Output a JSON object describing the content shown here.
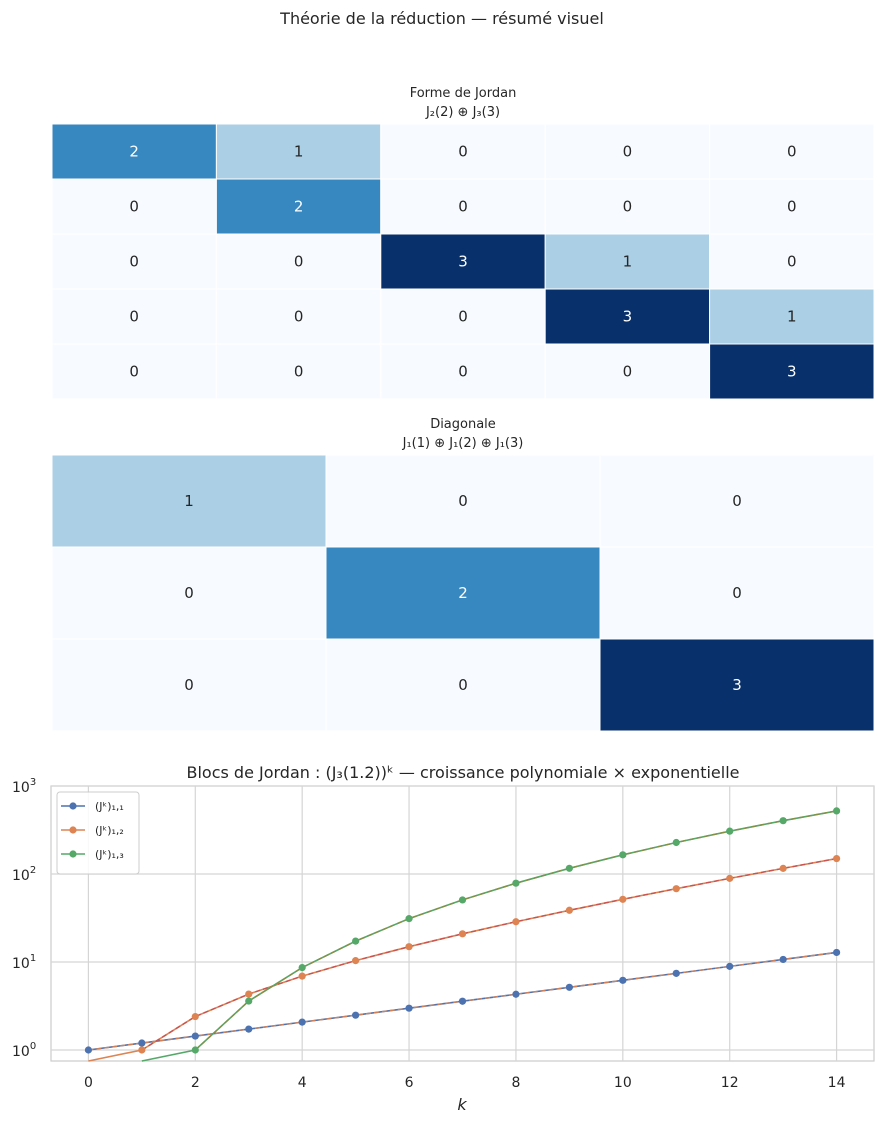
{
  "figure": {
    "suptitle": "Théorie de la réduction — résumé visuel"
  },
  "chart_data": [
    {
      "type": "heatmap",
      "title": "Forme de Jordan",
      "subtitle": "J₂(2) ⊕ J₃(3)",
      "colormap": "Blues",
      "vmin": 0,
      "vmax": 3,
      "matrix": [
        [
          2,
          1,
          0,
          0,
          0
        ],
        [
          0,
          2,
          0,
          0,
          0
        ],
        [
          0,
          0,
          3,
          1,
          0
        ],
        [
          0,
          0,
          0,
          3,
          1
        ],
        [
          0,
          0,
          0,
          0,
          3
        ]
      ]
    },
    {
      "type": "heatmap",
      "title": "Diagonale",
      "subtitle": "J₁(1) ⊕ J₁(2) ⊕ J₁(3)",
      "colormap": "Blues",
      "vmin": 0,
      "vmax": 3,
      "matrix": [
        [
          1,
          0,
          0
        ],
        [
          0,
          2,
          0
        ],
        [
          0,
          0,
          3
        ]
      ]
    },
    {
      "type": "line",
      "title": "Blocs de Jordan : (J₃(1.2))ᵏ — croissance polynomiale × exponentielle",
      "xlabel": "k",
      "ylabel": "",
      "yscale": "log",
      "xlim": [
        -0.7,
        14.7
      ],
      "ylim": [
        0.75,
        1000
      ],
      "grid": true,
      "legend_position": "top-left",
      "x_ticks": [
        0,
        2,
        4,
        6,
        8,
        10,
        12,
        14
      ],
      "x_tick_labels": [
        "0",
        "2",
        "4",
        "6",
        "8",
        "10",
        "12",
        "14"
      ],
      "y_ticks": [
        1,
        10,
        100,
        1000
      ],
      "y_tick_bases": [
        "10",
        "10",
        "10",
        "10"
      ],
      "y_tick_exps": [
        "0",
        "1",
        "2",
        "3"
      ],
      "x": [
        0,
        1,
        2,
        3,
        4,
        5,
        6,
        7,
        8,
        9,
        10,
        11,
        12,
        13,
        14
      ],
      "series": [
        {
          "name": "(Jᵏ)₁,₁",
          "color": "#4c72b0",
          "dash_color": "#dd8452",
          "values": [
            1,
            1.2,
            1.44,
            1.728,
            2.0736,
            2.4883,
            2.986,
            3.5832,
            4.2998,
            5.1598,
            6.1917,
            7.4301,
            8.9161,
            10.6993,
            12.8392
          ]
        },
        {
          "name": "(Jᵏ)₁,₂",
          "color": "#dd8452",
          "dash_color": "#c44e52",
          "values": [
            0,
            1,
            2.4,
            4.32,
            6.912,
            10.368,
            14.93,
            20.9,
            28.66,
            38.7,
            51.6,
            68.11,
            89.16,
            115.91,
            149.79
          ]
        },
        {
          "name": "(Jᵏ)₁,₃",
          "color": "#55a868",
          "dash_color": "#8c8c40",
          "values": [
            0,
            0,
            1,
            3.6,
            8.64,
            17.28,
            31.1,
            50.76,
            78.62,
            116.1,
            165.12,
            228.0,
            306.8,
            403.7,
            521.2
          ]
        }
      ]
    }
  ]
}
